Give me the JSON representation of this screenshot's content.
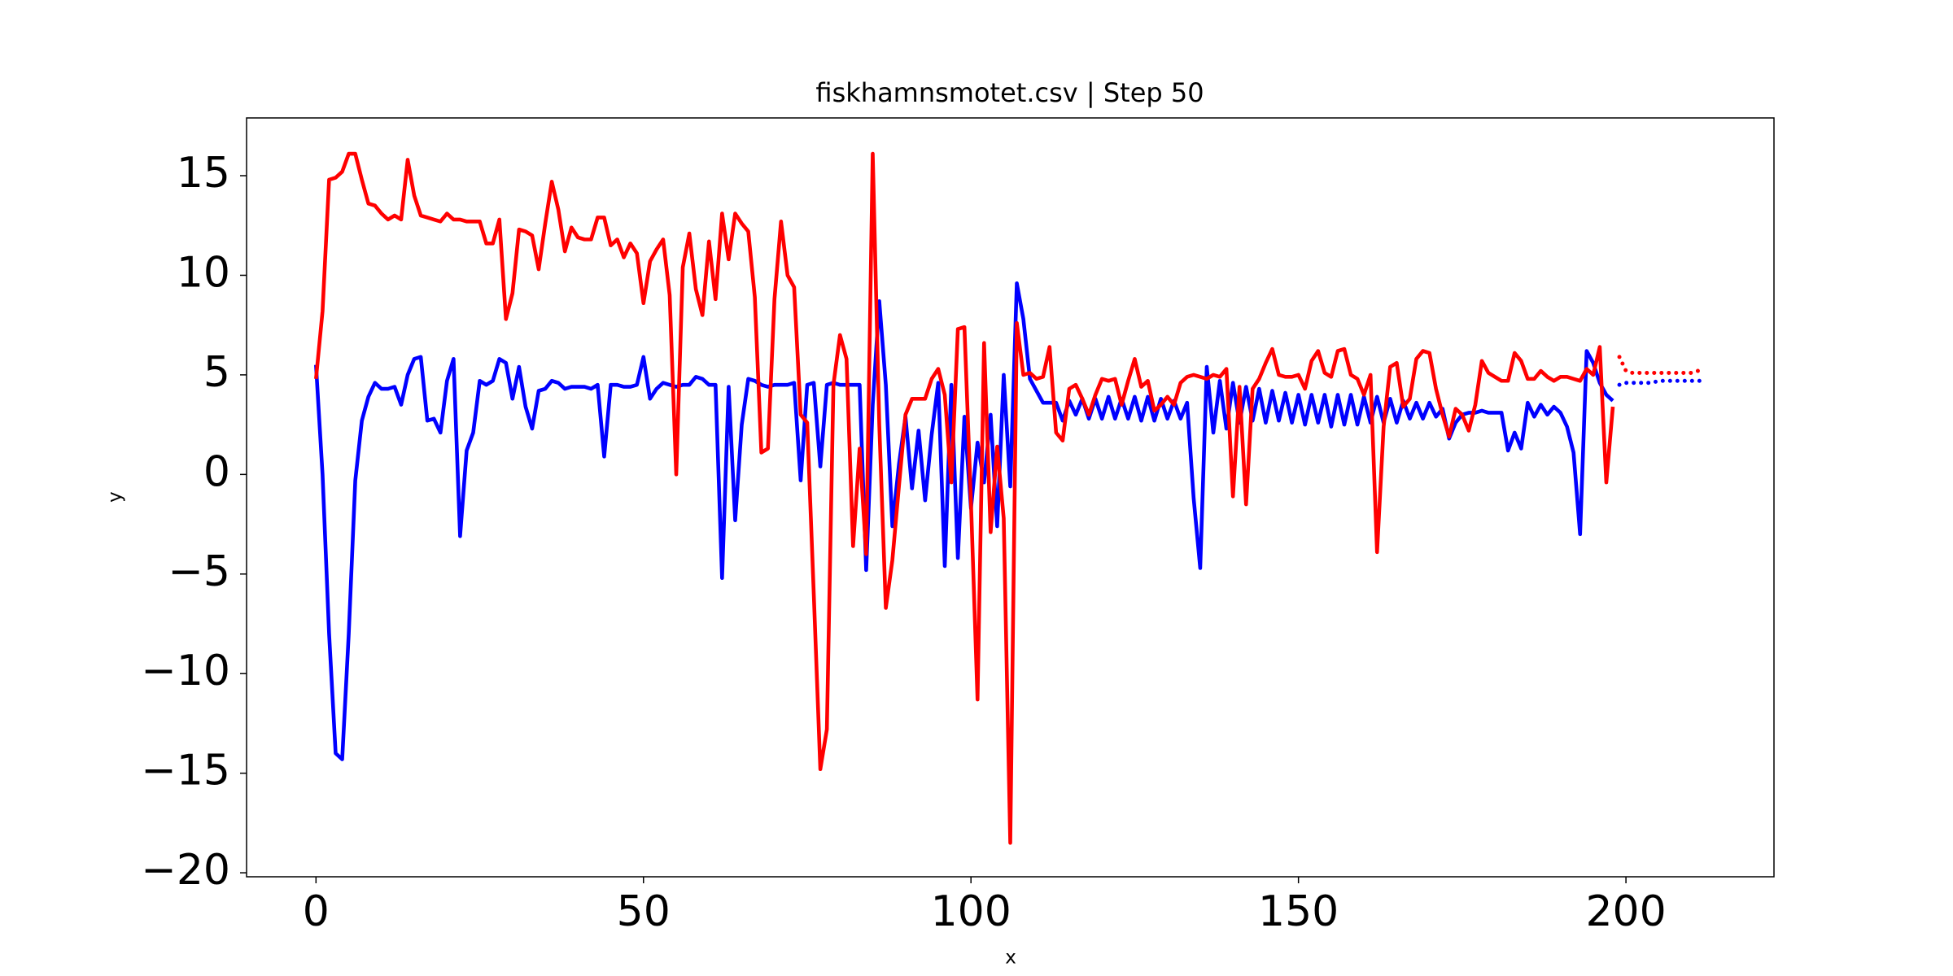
{
  "chart_data": {
    "type": "line",
    "title": "fiskhamnsmotet.csv | Step 50",
    "xlabel": "x",
    "ylabel": "y",
    "xlim": [
      -10.6,
      222.6
    ],
    "ylim": [
      -20.2,
      17.9
    ],
    "xticks": [
      0,
      50,
      100,
      150,
      200
    ],
    "yticks": [
      {
        "value": -20,
        "label": "−20"
      },
      {
        "value": -15,
        "label": "−15"
      },
      {
        "value": -10,
        "label": "−10"
      },
      {
        "value": -5,
        "label": "−5"
      },
      0,
      5,
      10,
      15
    ],
    "grid": false,
    "x": [
      0,
      1,
      2,
      3,
      4,
      5,
      6,
      7,
      8,
      9,
      10,
      11,
      12,
      13,
      14,
      15,
      16,
      17,
      18,
      19,
      20,
      21,
      22,
      23,
      24,
      25,
      26,
      27,
      28,
      29,
      30,
      31,
      32,
      33,
      34,
      35,
      36,
      37,
      38,
      39,
      40,
      41,
      42,
      43,
      44,
      45,
      46,
      47,
      48,
      49,
      50,
      51,
      52,
      53,
      54,
      55,
      56,
      57,
      58,
      59,
      60,
      61,
      62,
      63,
      64,
      65,
      66,
      67,
      68,
      69,
      70,
      71,
      72,
      73,
      74,
      75,
      76,
      77,
      78,
      79,
      80,
      81,
      82,
      83,
      84,
      85,
      86,
      87,
      88,
      89,
      90,
      91,
      92,
      93,
      94,
      95,
      96,
      97,
      98,
      99,
      100,
      101,
      102,
      103,
      104,
      105,
      106,
      107,
      108,
      109,
      110,
      111,
      112,
      113,
      114,
      115,
      116,
      117,
      118,
      119,
      120,
      121,
      122,
      123,
      124,
      125,
      126,
      127,
      128,
      129,
      130,
      131,
      132,
      133,
      134,
      135,
      136,
      137,
      138,
      139,
      140,
      141,
      142,
      143,
      144,
      145,
      146,
      147,
      148,
      149,
      150,
      151,
      152,
      153,
      154,
      155,
      156,
      157,
      158,
      159,
      160,
      161,
      162,
      163,
      164,
      165,
      166,
      167,
      168,
      169,
      170,
      171,
      172,
      173,
      174,
      175,
      176,
      177,
      178,
      179,
      180,
      181,
      182,
      183,
      184,
      185,
      186,
      187,
      188,
      189,
      190,
      191,
      192,
      193,
      194,
      195,
      196,
      197,
      198
    ],
    "series": [
      {
        "color": "#0000ff",
        "style": "solid",
        "values": [
          5.5,
          0,
          -8,
          -14,
          -14.3,
          -8,
          -0.3,
          2.7,
          3.9,
          4.6,
          4.3,
          4.3,
          4.4,
          3.5,
          5.0,
          5.8,
          5.9,
          2.7,
          2.8,
          2.1,
          4.7,
          5.8,
          -3.1,
          1.2,
          2.1,
          4.7,
          4.5,
          4.7,
          5.8,
          5.6,
          3.8,
          5.4,
          3.4,
          2.3,
          4.2,
          4.3,
          4.7,
          4.6,
          4.3,
          4.4,
          4.4,
          4.4,
          4.3,
          4.5,
          0.9,
          4.5,
          4.5,
          4.4,
          4.4,
          4.5,
          5.9,
          3.8,
          4.3,
          4.6,
          4.5,
          4.4,
          4.5,
          4.5,
          4.9,
          4.8,
          4.5,
          4.5,
          -5.2,
          4.4,
          -2.3,
          2.5,
          4.8,
          4.7,
          4.5,
          4.4,
          4.5,
          4.5,
          4.5,
          4.6,
          -0.3,
          4.5,
          4.6,
          0.4,
          4.5,
          4.6,
          4.5,
          4.5,
          4.5,
          4.5,
          -4.8,
          3.5,
          8.7,
          4.5,
          -2.6,
          0.5,
          2.9,
          -0.7,
          2.2,
          -1.3,
          2.0,
          4.6,
          -4.6,
          4.5,
          -4.2,
          2.9,
          -1.7,
          1.6,
          -0.4,
          3.0,
          -2.6,
          5.0,
          -0.6,
          9.6,
          7.8,
          4.8,
          4.2,
          3.6,
          3.6,
          3.6,
          2.7,
          3.7,
          3.0,
          3.8,
          2.8,
          3.8,
          2.8,
          3.9,
          2.8,
          3.8,
          2.8,
          3.9,
          2.7,
          3.9,
          2.7,
          3.8,
          2.8,
          3.7,
          2.8,
          3.6,
          -1.2,
          -4.7,
          5.4,
          2.1,
          4.7,
          2.3,
          4.6,
          2.6,
          4.4,
          2.7,
          4.3,
          2.6,
          4.2,
          2.7,
          4.1,
          2.6,
          4.0,
          2.5,
          4.0,
          2.6,
          4.0,
          2.4,
          4.0,
          2.5,
          4.0,
          2.5,
          3.9,
          2.6,
          3.9,
          2.6,
          3.8,
          2.6,
          3.7,
          2.8,
          3.6,
          2.8,
          3.6,
          2.9,
          3.3,
          1.8,
          2.6,
          3.0,
          3.1,
          3.1,
          3.2,
          3.1,
          3.1,
          3.1,
          1.2,
          2.1,
          1.3,
          3.6,
          2.9,
          3.5,
          3.0,
          3.4,
          3.1,
          2.4,
          1.1,
          -3.0,
          6.2,
          5.6,
          4.6,
          4.0,
          3.7
        ]
      },
      {
        "color": "#ff0000",
        "style": "solid",
        "values": [
          4.8,
          8.2,
          14.8,
          14.9,
          15.2,
          16.1,
          16.1,
          14.8,
          13.6,
          13.5,
          13.1,
          12.8,
          13.0,
          12.8,
          15.8,
          14.0,
          13.0,
          12.9,
          12.8,
          12.7,
          13.1,
          12.8,
          12.8,
          12.7,
          12.7,
          12.7,
          11.6,
          11.6,
          12.8,
          7.8,
          9.1,
          12.3,
          12.2,
          12.0,
          10.3,
          12.6,
          14.7,
          13.3,
          11.2,
          12.4,
          11.9,
          11.8,
          11.8,
          12.9,
          12.9,
          11.5,
          11.8,
          10.9,
          11.6,
          11.1,
          8.6,
          10.7,
          11.3,
          11.8,
          9.0,
          0.0,
          10.4,
          12.1,
          9.3,
          8.0,
          11.7,
          8.8,
          13.1,
          10.8,
          13.1,
          12.6,
          12.2,
          8.9,
          1.1,
          1.3,
          8.8,
          12.7,
          10.0,
          9.4,
          3.0,
          2.6,
          -6.0,
          -14.8,
          -12.8,
          4.5,
          7.0,
          5.8,
          -3.6,
          1.3,
          -4.0,
          16.1,
          2.5,
          -6.7,
          -4.3,
          -0.6,
          3.0,
          3.8,
          3.8,
          3.8,
          4.8,
          5.3,
          4.0,
          -0.4,
          7.3,
          7.4,
          -1.4,
          -11.3,
          6.6,
          -2.9,
          1.4,
          -2.2,
          -18.5,
          7.6,
          5.0,
          5.1,
          4.8,
          4.9,
          6.4,
          2.1,
          1.7,
          4.3,
          4.5,
          3.8,
          3.0,
          4.0,
          4.8,
          4.7,
          4.8,
          3.5,
          4.7,
          5.8,
          4.4,
          4.7,
          3.2,
          3.5,
          3.9,
          3.5,
          4.6,
          4.9,
          5.0,
          4.9,
          4.8,
          5.0,
          4.9,
          5.3,
          -1.1,
          4.4,
          -1.5,
          4.3,
          4.8,
          5.6,
          6.3,
          5.0,
          4.9,
          4.9,
          5.0,
          4.3,
          5.7,
          6.2,
          5.1,
          4.9,
          6.2,
          6.3,
          5.0,
          4.8,
          4.0,
          5.0,
          -3.9,
          2.4,
          5.4,
          5.6,
          3.4,
          3.8,
          5.8,
          6.2,
          6.1,
          4.3,
          3.0,
          1.9,
          3.3,
          3.0,
          2.2,
          3.5,
          5.7,
          5.1,
          4.9,
          4.7,
          4.7,
          6.1,
          5.7,
          4.8,
          4.8,
          5.2,
          4.9,
          4.7,
          4.9,
          4.9,
          4.8,
          4.7,
          5.3,
          5.0,
          6.4,
          -0.4,
          3.4
        ]
      },
      {
        "color": "#ff0000",
        "style": "dotted",
        "x": [
          199,
          200,
          201,
          202,
          203,
          204,
          205,
          206,
          207,
          208,
          209,
          210,
          211,
          212
        ],
        "values": [
          5.9,
          5.2,
          5.1,
          5.1,
          5.1,
          5.1,
          5.1,
          5.1,
          5.1,
          5.1,
          5.1,
          5.1,
          5.2,
          5.2
        ]
      },
      {
        "color": "#0000ff",
        "style": "dotted",
        "x": [
          199,
          200,
          201,
          202,
          203,
          204,
          205,
          206,
          207,
          208,
          209,
          210,
          211,
          212
        ],
        "values": [
          4.5,
          4.6,
          4.6,
          4.6,
          4.6,
          4.6,
          4.7,
          4.7,
          4.7,
          4.7,
          4.7,
          4.7,
          4.7,
          4.7
        ]
      }
    ]
  }
}
